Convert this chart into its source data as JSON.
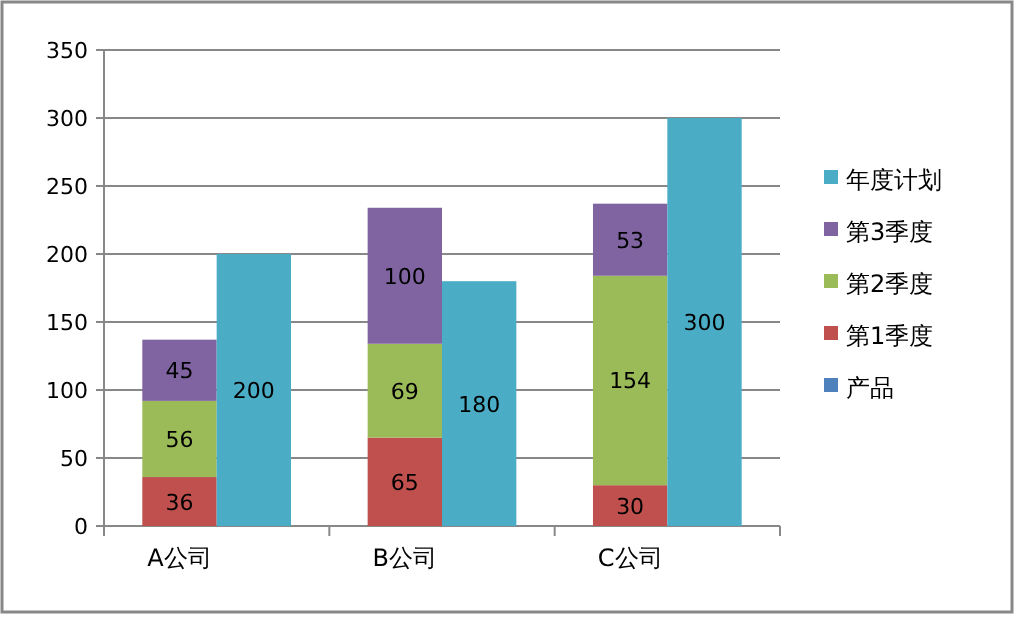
{
  "chart_data": {
    "type": "bar",
    "stacked": true,
    "categories": [
      "A公司",
      null,
      "B公司",
      null,
      "C公司",
      null
    ],
    "series": [
      {
        "name": "产品",
        "color": "#4f81bd",
        "values": [
          null,
          null,
          null,
          null,
          null,
          null
        ]
      },
      {
        "name": "第1季度",
        "color": "#c0504d",
        "values": [
          36,
          null,
          65,
          null,
          30,
          null
        ]
      },
      {
        "name": "第2季度",
        "color": "#9bbb59",
        "values": [
          56,
          null,
          69,
          null,
          154,
          null
        ]
      },
      {
        "name": "第3季度",
        "color": "#8064a2",
        "values": [
          45,
          null,
          100,
          null,
          53,
          null
        ]
      },
      {
        "name": "年度计划",
        "color": "#4bacc6",
        "values": [
          null,
          200,
          null,
          180,
          null,
          300
        ]
      }
    ],
    "ylim": [
      0,
      350
    ],
    "yticks": [
      0,
      50,
      100,
      150,
      200,
      250,
      300,
      350
    ],
    "grid": "y",
    "legend": "right",
    "data_labels": true
  }
}
